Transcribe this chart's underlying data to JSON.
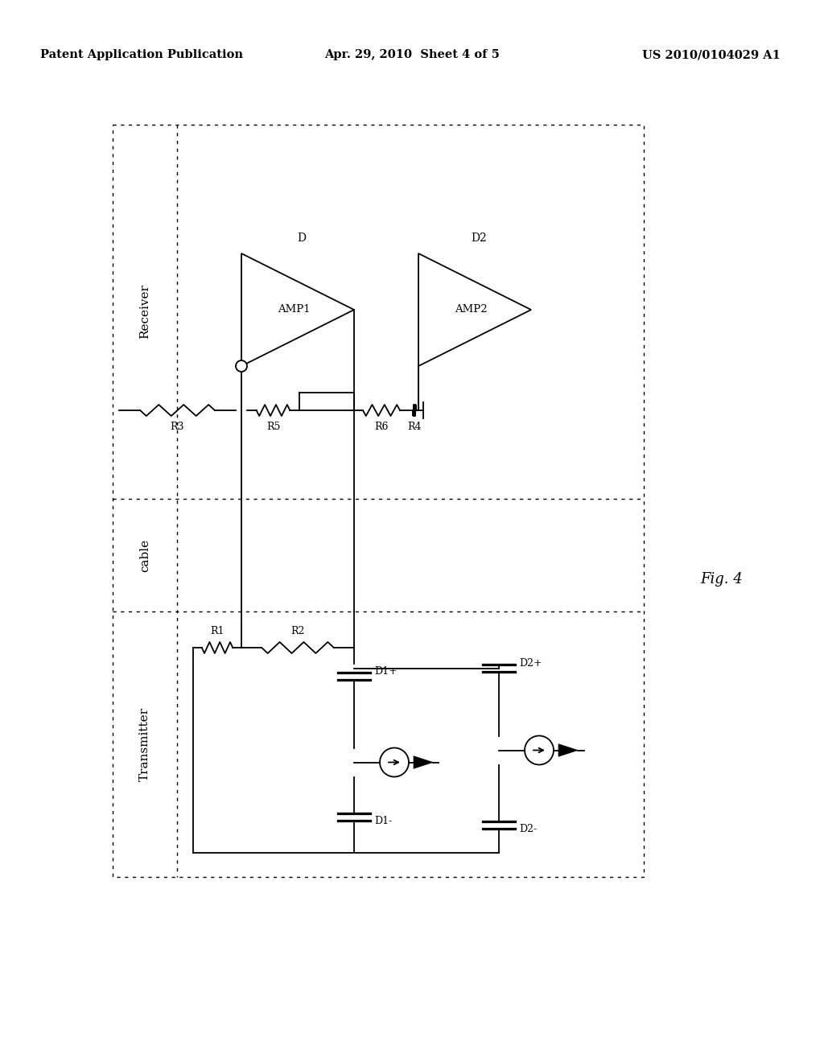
{
  "background_color": "#ffffff",
  "header_left": "Patent Application Publication",
  "header_center": "Apr. 29, 2010  Sheet 4 of 5",
  "header_right": "US 2010/0104029 A1",
  "fig_label": "Fig. 4"
}
